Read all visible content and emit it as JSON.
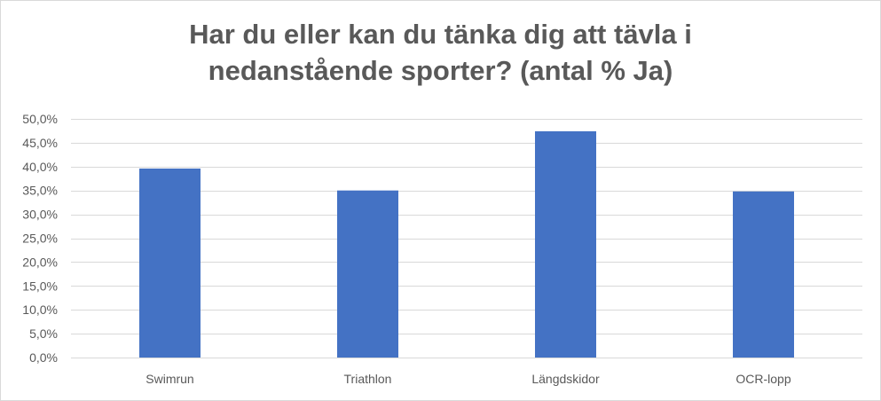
{
  "chart_data": {
    "type": "bar",
    "title_lines": [
      "Har du eller kan du tänka dig att tävla i",
      "nedanstående sporter? (antal % Ja)"
    ],
    "categories": [
      "Swimrun",
      "Triathlon",
      "Längdskidor",
      "OCR-lopp"
    ],
    "values": [
      39.6,
      35.0,
      47.4,
      34.8
    ],
    "ylim": [
      0,
      50
    ],
    "yticks": [
      0,
      5,
      10,
      15,
      20,
      25,
      30,
      35,
      40,
      45,
      50
    ],
    "ytick_labels": [
      "0,0%",
      "5,0%",
      "10,0%",
      "15,0%",
      "20,0%",
      "25,0%",
      "30,0%",
      "35,0%",
      "40,0%",
      "45,0%",
      "50,0%"
    ],
    "grid": true,
    "legend": "none",
    "bar_color": "#4472c4",
    "grid_color": "#d9d9d9",
    "text_color": "#595959"
  }
}
